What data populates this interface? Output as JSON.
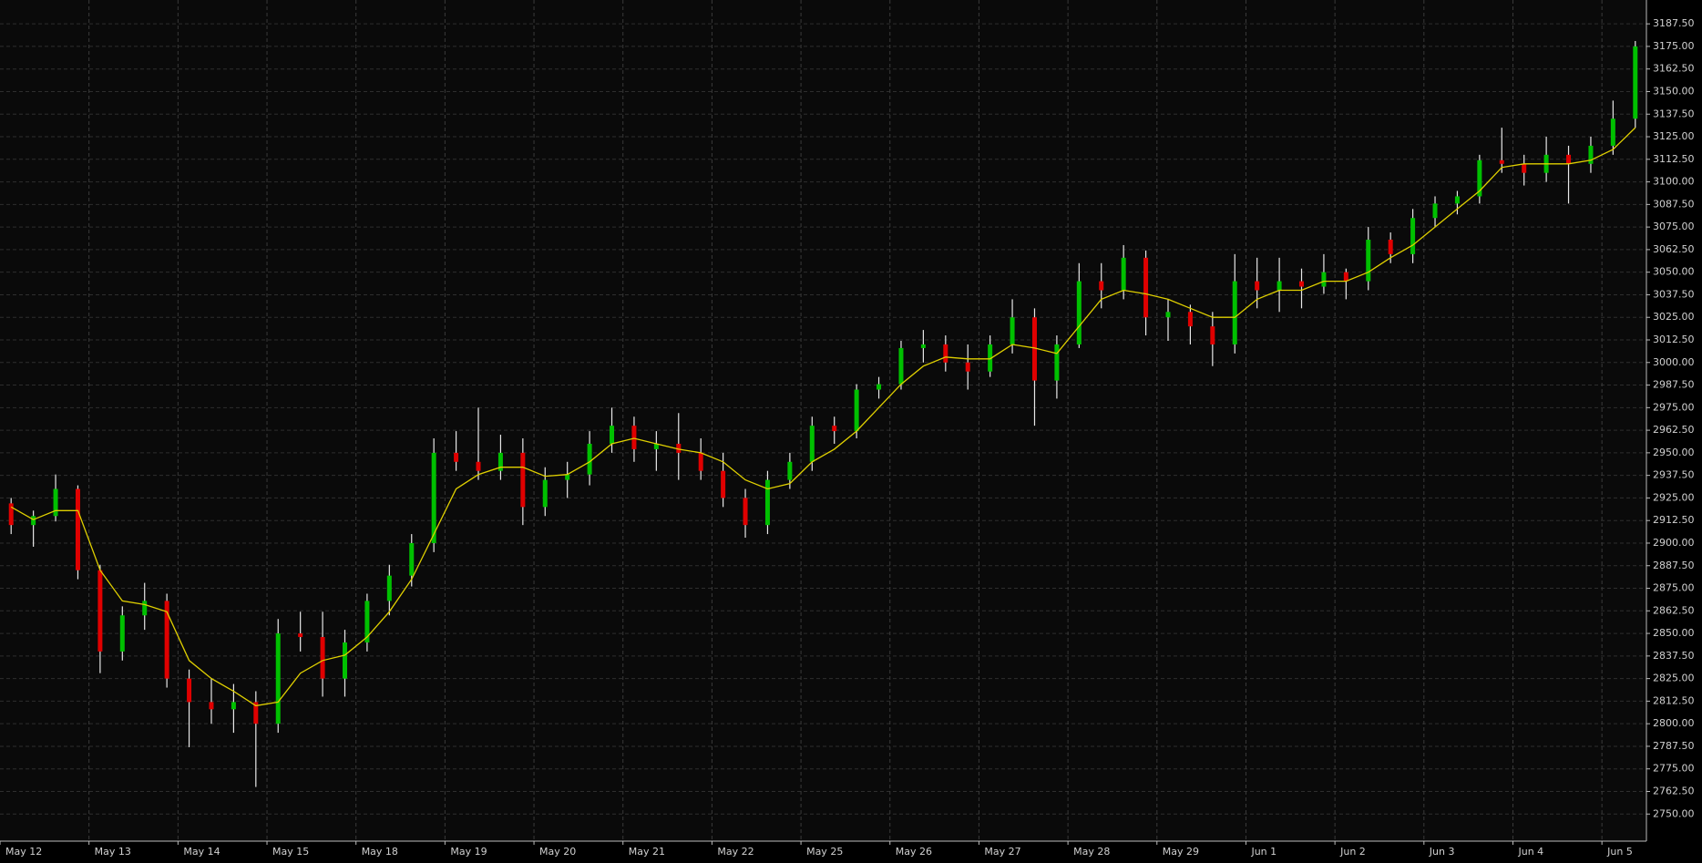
{
  "chart_data": {
    "type": "candlestick",
    "categories": [
      "May 12",
      null,
      null,
      null,
      "May 13",
      null,
      null,
      null,
      "May 14",
      null,
      null,
      null,
      "May 15",
      null,
      null,
      null,
      "May 18",
      null,
      null,
      null,
      "May 19",
      null,
      null,
      null,
      "May 20",
      null,
      null,
      null,
      "May 21",
      null,
      null,
      null,
      "May 22",
      null,
      null,
      null,
      "May 25",
      null,
      null,
      null,
      "May 26",
      null,
      null,
      null,
      "May 27",
      null,
      null,
      null,
      "May 28",
      null,
      null,
      null,
      "May 29",
      null,
      null,
      null,
      "Jun 1",
      null,
      null,
      null,
      "Jun 2",
      null,
      null,
      null,
      "Jun 3",
      null,
      null,
      null,
      "Jun 4",
      null,
      null,
      null,
      "Jun 5",
      null
    ],
    "open": [
      2922,
      2910,
      2915,
      2930,
      2885,
      2840,
      2860,
      2868,
      2825,
      2812,
      2808,
      2812,
      2800,
      2850,
      2848,
      2825,
      2845,
      2868,
      2882,
      2900,
      2950,
      2945,
      2940,
      2950,
      2920,
      2935,
      2938,
      2955,
      2965,
      2952,
      2955,
      2950,
      2940,
      2925,
      2910,
      2935,
      2945,
      2965,
      2962,
      2985,
      2988,
      3008,
      3010,
      3000,
      2995,
      3010,
      3025,
      2990,
      3010,
      3045,
      3040,
      3058,
      3025,
      3028,
      3020,
      3010,
      3045,
      3040,
      3045,
      3042,
      3050,
      3045,
      3068,
      3060,
      3080,
      3088,
      3092,
      3112,
      3110,
      3105,
      3115,
      3110,
      3120,
      3135
    ],
    "high": [
      2925,
      2918,
      2938,
      2932,
      2888,
      2865,
      2878,
      2872,
      2830,
      2825,
      2822,
      2818,
      2858,
      2862,
      2862,
      2852,
      2872,
      2888,
      2905,
      2958,
      2962,
      2975,
      2960,
      2958,
      2942,
      2945,
      2962,
      2975,
      2970,
      2962,
      2972,
      2958,
      2950,
      2930,
      2940,
      2950,
      2970,
      2970,
      2988,
      2992,
      3012,
      3018,
      3015,
      3010,
      3015,
      3035,
      3030,
      3015,
      3055,
      3055,
      3065,
      3062,
      3035,
      3032,
      3028,
      3060,
      3058,
      3058,
      3052,
      3060,
      3052,
      3075,
      3072,
      3085,
      3092,
      3095,
      3115,
      3130,
      3115,
      3125,
      3120,
      3125,
      3145,
      3178
    ],
    "low": [
      2905,
      2898,
      2912,
      2880,
      2828,
      2835,
      2852,
      2820,
      2787,
      2800,
      2795,
      2765,
      2795,
      2840,
      2815,
      2815,
      2840,
      2860,
      2876,
      2895,
      2940,
      2935,
      2935,
      2910,
      2915,
      2925,
      2932,
      2950,
      2945,
      2940,
      2935,
      2935,
      2920,
      2903,
      2905,
      2930,
      2940,
      2955,
      2958,
      2980,
      2985,
      3000,
      2995,
      2985,
      2992,
      3005,
      2965,
      2980,
      3008,
      3030,
      3035,
      3015,
      3012,
      3010,
      2998,
      3005,
      3030,
      3028,
      3030,
      3038,
      3035,
      3040,
      3055,
      3055,
      3075,
      3082,
      3088,
      3105,
      3098,
      3100,
      3088,
      3105,
      3115,
      3130
    ],
    "close": [
      2910,
      2915,
      2930,
      2885,
      2840,
      2860,
      2868,
      2825,
      2812,
      2808,
      2812,
      2800,
      2850,
      2848,
      2825,
      2845,
      2868,
      2882,
      2900,
      2950,
      2945,
      2940,
      2950,
      2920,
      2935,
      2938,
      2955,
      2965,
      2952,
      2955,
      2950,
      2940,
      2925,
      2910,
      2935,
      2945,
      2965,
      2962,
      2985,
      2988,
      3008,
      3010,
      3000,
      2995,
      3010,
      3025,
      2990,
      3010,
      3045,
      3040,
      3058,
      3025,
      3028,
      3020,
      3010,
      3045,
      3040,
      3045,
      3042,
      3050,
      3045,
      3068,
      3060,
      3080,
      3088,
      3092,
      3112,
      3110,
      3105,
      3115,
      3110,
      3120,
      3135,
      3175
    ],
    "ma": [
      2920,
      2913,
      2918,
      2918,
      2885,
      2868,
      2866,
      2862,
      2835,
      2825,
      2818,
      2810,
      2812,
      2828,
      2835,
      2838,
      2848,
      2862,
      2880,
      2905,
      2930,
      2938,
      2942,
      2942,
      2937,
      2938,
      2945,
      2955,
      2958,
      2955,
      2952,
      2950,
      2945,
      2935,
      2930,
      2933,
      2945,
      2952,
      2962,
      2975,
      2988,
      2998,
      3003,
      3002,
      3002,
      3010,
      3008,
      3005,
      3020,
      3035,
      3040,
      3038,
      3035,
      3030,
      3025,
      3025,
      3035,
      3040,
      3040,
      3045,
      3045,
      3050,
      3058,
      3065,
      3075,
      3085,
      3095,
      3108,
      3110,
      3110,
      3110,
      3112,
      3118,
      3130
    ],
    "up_color": "#00c000",
    "down_color": "#e00000",
    "ma_color": "#e0d000",
    "ylim": [
      2735,
      3200.7
    ],
    "yticks": [
      {
        "value": 2750,
        "label": "2750.00"
      },
      {
        "value": 2762.5,
        "label": "2762.50"
      },
      {
        "value": 2775,
        "label": "2775.00"
      },
      {
        "value": 2787.5,
        "label": "2787.50"
      },
      {
        "value": 2800,
        "label": "2800.00"
      },
      {
        "value": 2812.5,
        "label": "2812.50"
      },
      {
        "value": 2825,
        "label": "2825.00"
      },
      {
        "value": 2837.5,
        "label": "2837.50"
      },
      {
        "value": 2850,
        "label": "2850.00"
      },
      {
        "value": 2862.5,
        "label": "2862.50"
      },
      {
        "value": 2875,
        "label": "2875.00"
      },
      {
        "value": 2887.5,
        "label": "2887.50"
      },
      {
        "value": 2900,
        "label": "2900.00"
      },
      {
        "value": 2912.5,
        "label": "2912.50"
      },
      {
        "value": 2925,
        "label": "2925.00"
      },
      {
        "value": 2937.5,
        "label": "2937.50"
      },
      {
        "value": 2950,
        "label": "2950.00"
      },
      {
        "value": 2962.5,
        "label": "2962.50"
      },
      {
        "value": 2975,
        "label": "2975.00"
      },
      {
        "value": 2987.5,
        "label": "2987.50"
      },
      {
        "value": 3000,
        "label": "3000.00"
      },
      {
        "value": 3012.5,
        "label": "3012.50"
      },
      {
        "value": 3025,
        "label": "3025.00"
      },
      {
        "value": 3037.5,
        "label": "3037.50"
      },
      {
        "value": 3050,
        "label": "3050.00"
      },
      {
        "value": 3062.5,
        "label": "3062.50"
      },
      {
        "value": 3075,
        "label": "3075.00"
      },
      {
        "value": 3087.5,
        "label": "3087.50"
      },
      {
        "value": 3100,
        "label": "3100.00"
      },
      {
        "value": 3112.5,
        "label": "3112.50"
      },
      {
        "value": 3125,
        "label": "3125.00"
      },
      {
        "value": 3137.5,
        "label": "3137.50"
      },
      {
        "value": 3150,
        "label": "3150.00"
      },
      {
        "value": 3162.5,
        "label": "3162.50"
      },
      {
        "value": 3175,
        "label": "3175.00"
      },
      {
        "value": 3187.5,
        "label": "3187.50"
      }
    ],
    "grid": true
  }
}
